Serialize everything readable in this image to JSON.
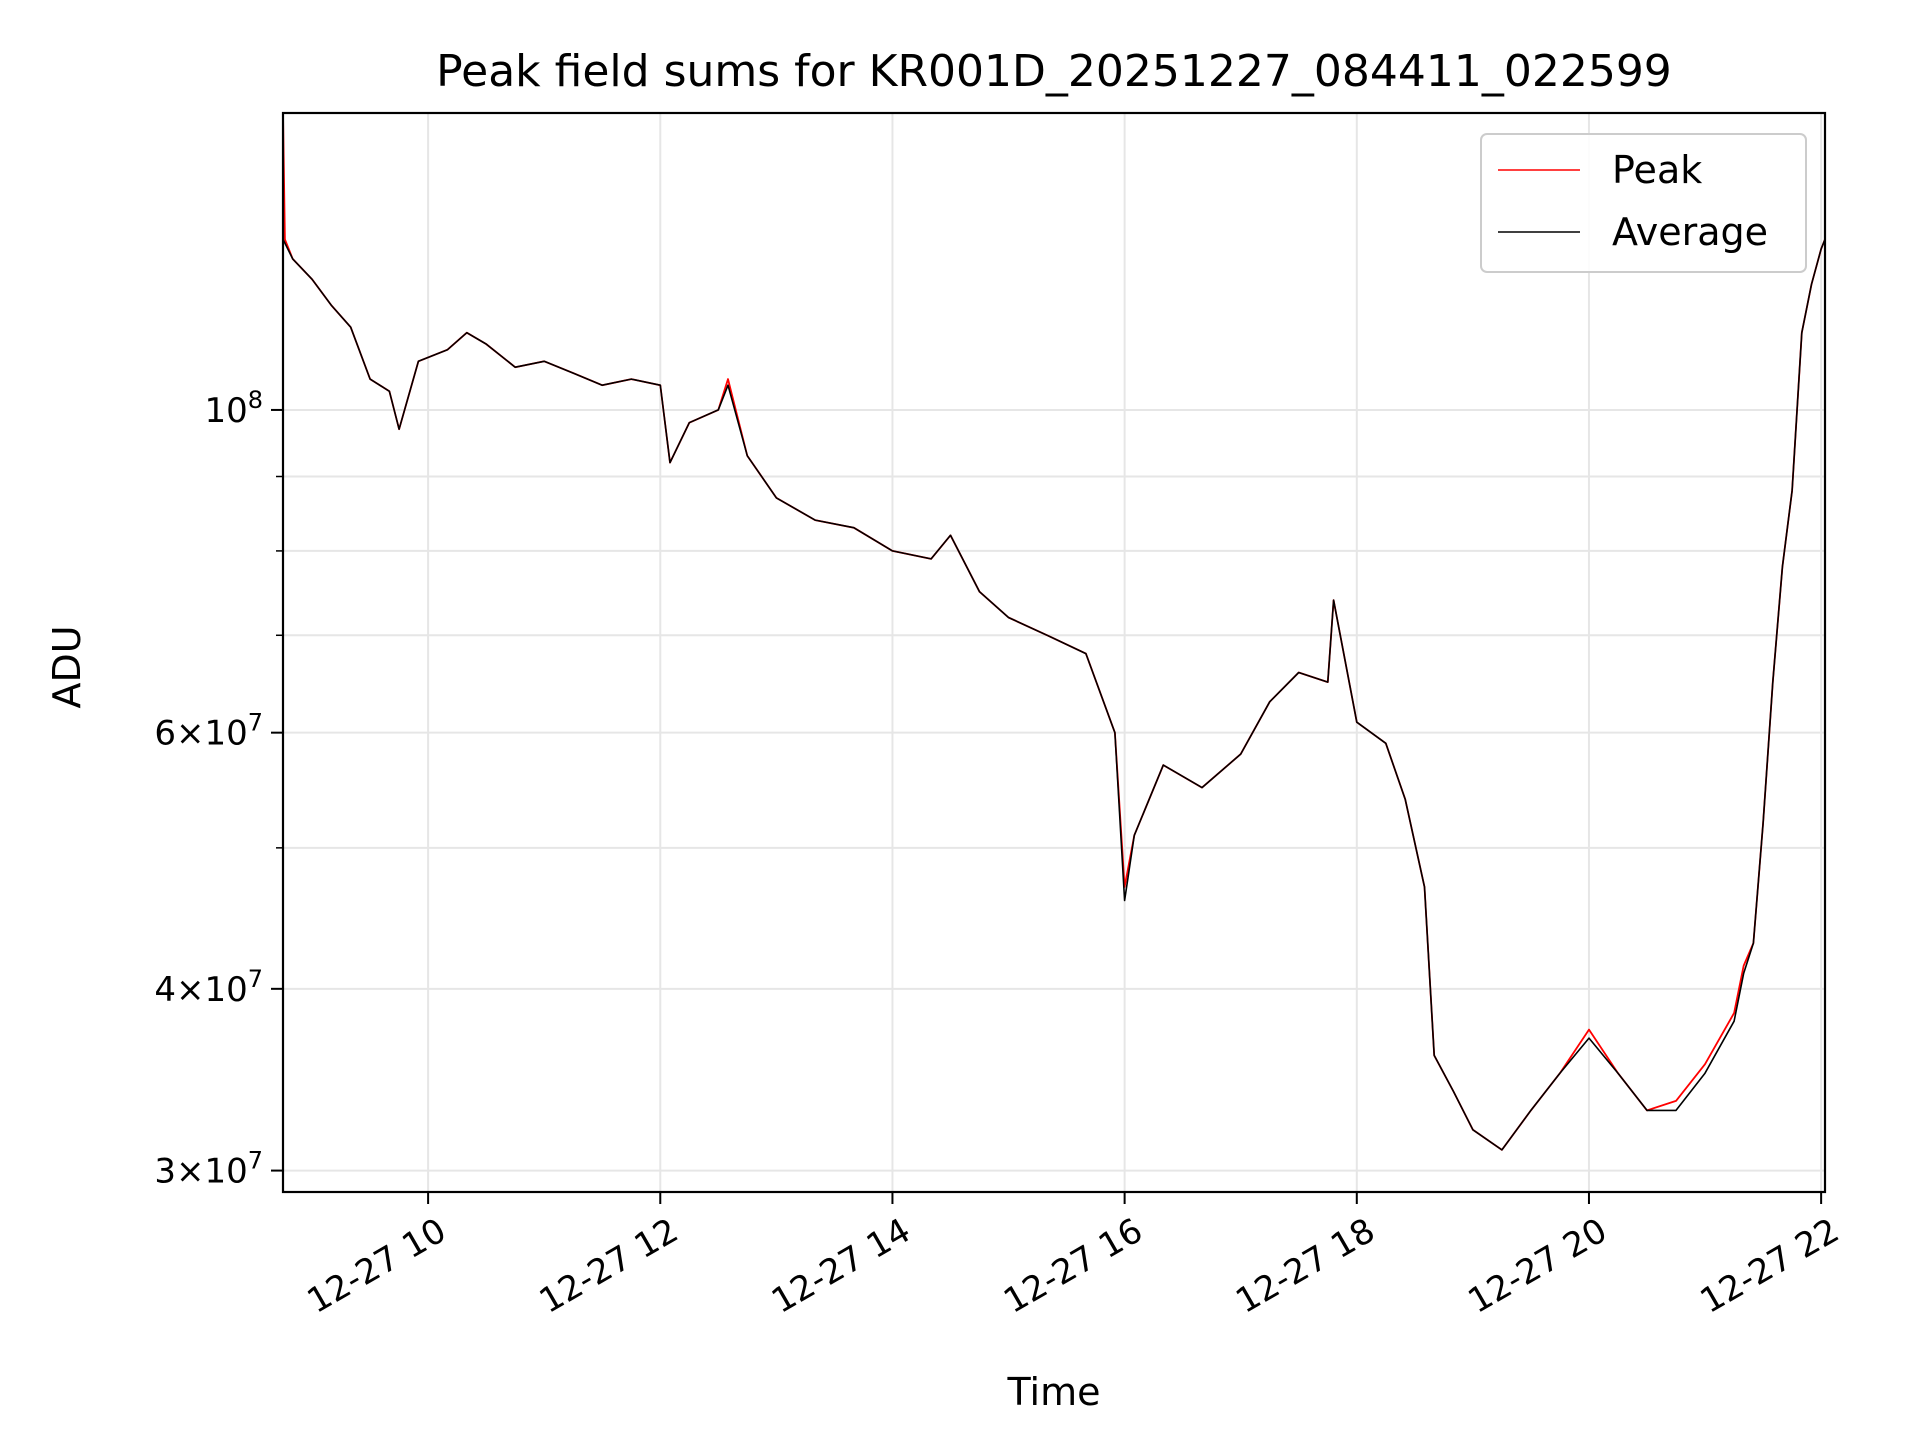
{
  "chart_data": {
    "type": "line",
    "title": "Peak field sums for KR001D_20251227_084411_022599",
    "xlabel": "Time",
    "ylabel": "ADU",
    "y_scale": "log",
    "ylim": [
      29000000,
      160000000
    ],
    "xlim": [
      "2025-12-27 08:45",
      "2025-12-27 22:02"
    ],
    "grid": true,
    "legend_position": "top-right",
    "x_tick_labels": [
      "12-27 10",
      "12-27 12",
      "12-27 14",
      "12-27 16",
      "12-27 18",
      "12-27 20",
      "12-27 22"
    ],
    "x_tick_values": [
      "2025-12-27 10:00",
      "2025-12-27 12:00",
      "2025-12-27 14:00",
      "2025-12-27 16:00",
      "2025-12-27 18:00",
      "2025-12-27 20:00",
      "2025-12-27 22:00"
    ],
    "y_tick_labels": [
      {
        "value": 100000000,
        "mantissa": "",
        "exp": "8"
      },
      {
        "value": 60000000,
        "mantissa": "6",
        "exp": "7"
      },
      {
        "value": 40000000,
        "mantissa": "4",
        "exp": "7"
      },
      {
        "value": 30000000,
        "mantissa": "3",
        "exp": "7"
      }
    ],
    "y_minor_ticks": [
      50000000,
      70000000,
      80000000,
      90000000
    ],
    "series": [
      {
        "name": "Peak",
        "color": "#ff0000",
        "points": [
          [
            "2025-12-27 08:45",
            160000000
          ],
          [
            "2025-12-27 08:46",
            131000000
          ],
          [
            "2025-12-27 08:50",
            127000000
          ],
          [
            "2025-12-27 09:00",
            123000000
          ],
          [
            "2025-12-27 09:10",
            118000000
          ],
          [
            "2025-12-27 09:20",
            114000000
          ],
          [
            "2025-12-27 09:30",
            105000000
          ],
          [
            "2025-12-27 09:40",
            103000000
          ],
          [
            "2025-12-27 09:45",
            97000000
          ],
          [
            "2025-12-27 09:55",
            108000000
          ],
          [
            "2025-12-27 10:10",
            110000000
          ],
          [
            "2025-12-27 10:20",
            113000000
          ],
          [
            "2025-12-27 10:30",
            111000000
          ],
          [
            "2025-12-27 10:45",
            107000000
          ],
          [
            "2025-12-27 11:00",
            108000000
          ],
          [
            "2025-12-27 11:15",
            106000000
          ],
          [
            "2025-12-27 11:30",
            104000000
          ],
          [
            "2025-12-27 11:45",
            105000000
          ],
          [
            "2025-12-27 12:00",
            104000000
          ],
          [
            "2025-12-27 12:05",
            92000000
          ],
          [
            "2025-12-27 12:15",
            98000000
          ],
          [
            "2025-12-27 12:30",
            100000000
          ],
          [
            "2025-12-27 12:35",
            105000000
          ],
          [
            "2025-12-27 12:45",
            93000000
          ],
          [
            "2025-12-27 13:00",
            87000000
          ],
          [
            "2025-12-27 13:20",
            84000000
          ],
          [
            "2025-12-27 13:40",
            83000000
          ],
          [
            "2025-12-27 14:00",
            80000000
          ],
          [
            "2025-12-27 14:20",
            79000000
          ],
          [
            "2025-12-27 14:30",
            82000000
          ],
          [
            "2025-12-27 14:45",
            75000000
          ],
          [
            "2025-12-27 15:00",
            72000000
          ],
          [
            "2025-12-27 15:20",
            70000000
          ],
          [
            "2025-12-27 15:40",
            68000000
          ],
          [
            "2025-12-27 15:55",
            60000000
          ],
          [
            "2025-12-27 16:00",
            47000000
          ],
          [
            "2025-12-27 16:05",
            51000000
          ],
          [
            "2025-12-27 16:20",
            57000000
          ],
          [
            "2025-12-27 16:40",
            55000000
          ],
          [
            "2025-12-27 17:00",
            58000000
          ],
          [
            "2025-12-27 17:15",
            63000000
          ],
          [
            "2025-12-27 17:30",
            66000000
          ],
          [
            "2025-12-27 17:45",
            65000000
          ],
          [
            "2025-12-27 17:48",
            74000000
          ],
          [
            "2025-12-27 18:00",
            61000000
          ],
          [
            "2025-12-27 18:15",
            59000000
          ],
          [
            "2025-12-27 18:25",
            54000000
          ],
          [
            "2025-12-27 18:35",
            47000000
          ],
          [
            "2025-12-27 18:40",
            36000000
          ],
          [
            "2025-12-27 18:50",
            34000000
          ],
          [
            "2025-12-27 19:00",
            32000000
          ],
          [
            "2025-12-27 19:15",
            31000000
          ],
          [
            "2025-12-27 19:30",
            33000000
          ],
          [
            "2025-12-27 19:45",
            35000000
          ],
          [
            "2025-12-27 20:00",
            37500000
          ],
          [
            "2025-12-27 20:15",
            35000000
          ],
          [
            "2025-12-27 20:30",
            33000000
          ],
          [
            "2025-12-27 20:45",
            33500000
          ],
          [
            "2025-12-27 21:00",
            35500000
          ],
          [
            "2025-12-27 21:15",
            38500000
          ],
          [
            "2025-12-27 21:20",
            41500000
          ],
          [
            "2025-12-27 21:25",
            43000000
          ],
          [
            "2025-12-27 21:30",
            52000000
          ],
          [
            "2025-12-27 21:35",
            65000000
          ],
          [
            "2025-12-27 21:40",
            78000000
          ],
          [
            "2025-12-27 21:45",
            88000000
          ],
          [
            "2025-12-27 21:50",
            113000000
          ],
          [
            "2025-12-27 21:55",
            122000000
          ],
          [
            "2025-12-27 22:00",
            129000000
          ],
          [
            "2025-12-27 22:02",
            131000000
          ]
        ]
      },
      {
        "name": "Average",
        "color": "#000000",
        "points": [
          [
            "2025-12-27 08:45",
            131000000
          ],
          [
            "2025-12-27 08:50",
            127000000
          ],
          [
            "2025-12-27 09:00",
            123000000
          ],
          [
            "2025-12-27 09:10",
            118000000
          ],
          [
            "2025-12-27 09:20",
            114000000
          ],
          [
            "2025-12-27 09:30",
            105000000
          ],
          [
            "2025-12-27 09:40",
            103000000
          ],
          [
            "2025-12-27 09:45",
            97000000
          ],
          [
            "2025-12-27 09:55",
            108000000
          ],
          [
            "2025-12-27 10:10",
            110000000
          ],
          [
            "2025-12-27 10:20",
            113000000
          ],
          [
            "2025-12-27 10:30",
            111000000
          ],
          [
            "2025-12-27 10:45",
            107000000
          ],
          [
            "2025-12-27 11:00",
            108000000
          ],
          [
            "2025-12-27 11:15",
            106000000
          ],
          [
            "2025-12-27 11:30",
            104000000
          ],
          [
            "2025-12-27 11:45",
            105000000
          ],
          [
            "2025-12-27 12:00",
            104000000
          ],
          [
            "2025-12-27 12:05",
            92000000
          ],
          [
            "2025-12-27 12:15",
            98000000
          ],
          [
            "2025-12-27 12:30",
            100000000
          ],
          [
            "2025-12-27 12:35",
            104000000
          ],
          [
            "2025-12-27 12:45",
            93000000
          ],
          [
            "2025-12-27 13:00",
            87000000
          ],
          [
            "2025-12-27 13:20",
            84000000
          ],
          [
            "2025-12-27 13:40",
            83000000
          ],
          [
            "2025-12-27 14:00",
            80000000
          ],
          [
            "2025-12-27 14:20",
            79000000
          ],
          [
            "2025-12-27 14:30",
            82000000
          ],
          [
            "2025-12-27 14:45",
            75000000
          ],
          [
            "2025-12-27 15:00",
            72000000
          ],
          [
            "2025-12-27 15:20",
            70000000
          ],
          [
            "2025-12-27 15:40",
            68000000
          ],
          [
            "2025-12-27 15:55",
            60000000
          ],
          [
            "2025-12-27 16:00",
            46000000
          ],
          [
            "2025-12-27 16:05",
            51000000
          ],
          [
            "2025-12-27 16:20",
            57000000
          ],
          [
            "2025-12-27 16:40",
            55000000
          ],
          [
            "2025-12-27 17:00",
            58000000
          ],
          [
            "2025-12-27 17:15",
            63000000
          ],
          [
            "2025-12-27 17:30",
            66000000
          ],
          [
            "2025-12-27 17:45",
            65000000
          ],
          [
            "2025-12-27 17:48",
            74000000
          ],
          [
            "2025-12-27 18:00",
            61000000
          ],
          [
            "2025-12-27 18:15",
            59000000
          ],
          [
            "2025-12-27 18:25",
            54000000
          ],
          [
            "2025-12-27 18:35",
            47000000
          ],
          [
            "2025-12-27 18:40",
            36000000
          ],
          [
            "2025-12-27 18:50",
            34000000
          ],
          [
            "2025-12-27 19:00",
            32000000
          ],
          [
            "2025-12-27 19:15",
            31000000
          ],
          [
            "2025-12-27 19:30",
            33000000
          ],
          [
            "2025-12-27 19:45",
            35000000
          ],
          [
            "2025-12-27 20:00",
            37000000
          ],
          [
            "2025-12-27 20:15",
            35000000
          ],
          [
            "2025-12-27 20:30",
            33000000
          ],
          [
            "2025-12-27 20:45",
            33000000
          ],
          [
            "2025-12-27 21:00",
            35000000
          ],
          [
            "2025-12-27 21:15",
            38000000
          ],
          [
            "2025-12-27 21:20",
            41000000
          ],
          [
            "2025-12-27 21:25",
            43000000
          ],
          [
            "2025-12-27 21:30",
            52000000
          ],
          [
            "2025-12-27 21:35",
            65000000
          ],
          [
            "2025-12-27 21:40",
            78000000
          ],
          [
            "2025-12-27 21:45",
            88000000
          ],
          [
            "2025-12-27 21:50",
            113000000
          ],
          [
            "2025-12-27 21:55",
            122000000
          ],
          [
            "2025-12-27 22:00",
            129000000
          ],
          [
            "2025-12-27 22:02",
            131000000
          ]
        ]
      }
    ]
  }
}
